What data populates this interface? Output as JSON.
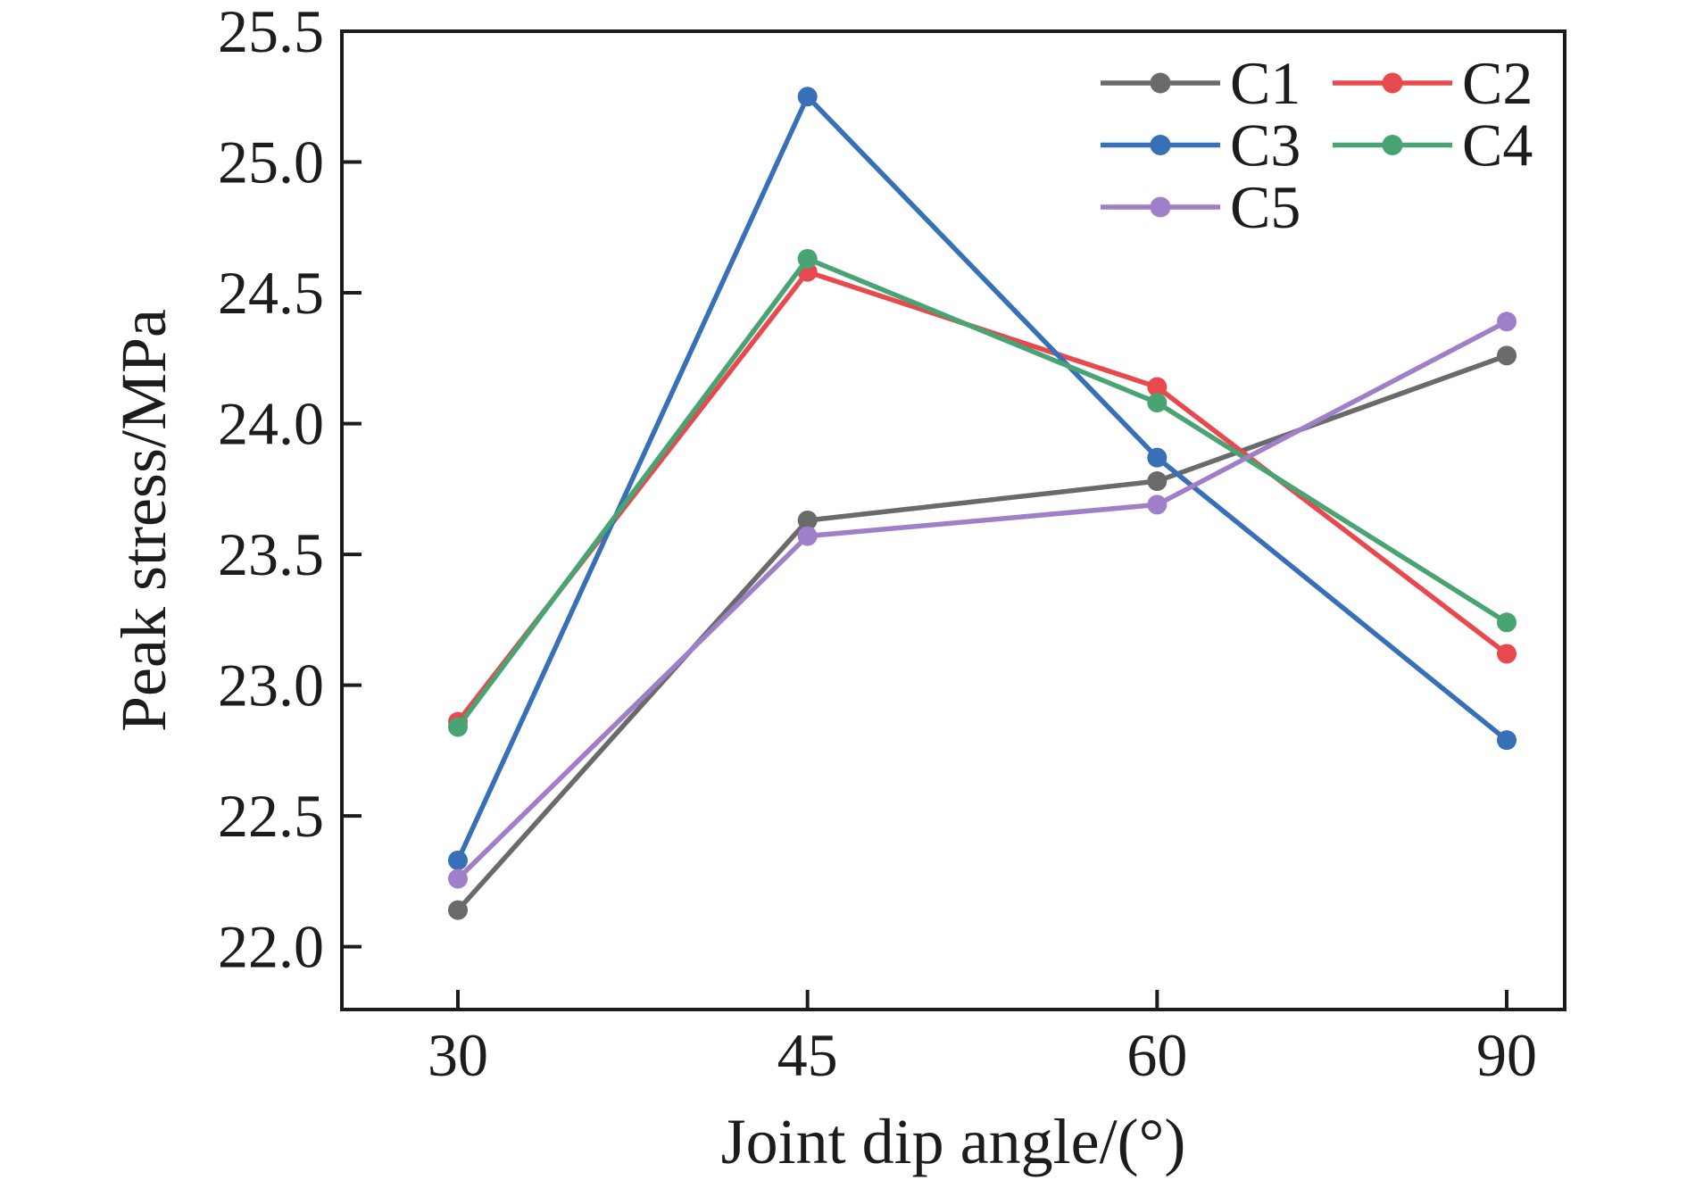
{
  "page": {
    "background": "#ffffff",
    "text_color": "#1c1c1c"
  },
  "chart_data": {
    "type": "line",
    "title": "",
    "xlabel": "Joint dip angle/(°)",
    "ylabel": "Peak stress/MPa",
    "categories": [
      30,
      45,
      60,
      90
    ],
    "x_tick_labels": [
      "30",
      "45",
      "60",
      "90"
    ],
    "y_ticks": [
      25.5,
      25.0,
      24.5,
      24.0,
      23.5,
      23.0,
      22.5,
      22.0
    ],
    "y_tick_labels": [
      "25.5",
      "25.0",
      "24.5",
      "24.0",
      "23.5",
      "23.0",
      "22.5",
      "22.0"
    ],
    "ylim": [
      21.76,
      25.5
    ],
    "grid": false,
    "legend_position": "top-right",
    "axis_color": "#1c1c1c",
    "marker": "circle",
    "series": [
      {
        "name": "C1",
        "color": "#6a6a6a",
        "values": [
          22.14,
          23.63,
          23.78,
          24.26
        ]
      },
      {
        "name": "C2",
        "color": "#e8494e",
        "values": [
          22.86,
          24.58,
          24.14,
          23.12
        ]
      },
      {
        "name": "C3",
        "color": "#3870b8",
        "values": [
          22.33,
          25.25,
          23.87,
          22.79
        ]
      },
      {
        "name": "C4",
        "color": "#49a473",
        "values": [
          22.84,
          24.63,
          24.08,
          23.24
        ]
      },
      {
        "name": "C5",
        "color": "#a07fc9",
        "values": [
          22.26,
          23.57,
          23.69,
          24.39
        ]
      }
    ]
  }
}
